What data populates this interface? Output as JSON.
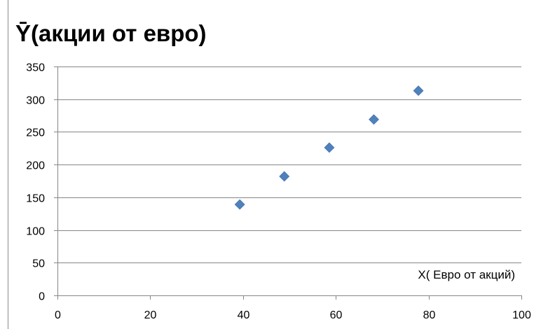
{
  "chart_data": {
    "type": "scatter",
    "title": "Ȳ(акции от евро)",
    "xlabel": "X( Евро от акций)",
    "ylabel": "",
    "xlim": [
      0,
      100
    ],
    "ylim": [
      0,
      350
    ],
    "x_ticks": [
      0,
      20,
      40,
      60,
      80,
      100
    ],
    "y_ticks": [
      0,
      50,
      100,
      150,
      200,
      250,
      300,
      350
    ],
    "grid": "horizontal",
    "legend": "none",
    "marker": "diamond",
    "color": "#4f81bd",
    "series": [
      {
        "x": [
          39.3,
          48.9,
          58.6,
          68.2,
          77.8
        ],
        "y": [
          139,
          182,
          226,
          269,
          313
        ]
      }
    ]
  }
}
